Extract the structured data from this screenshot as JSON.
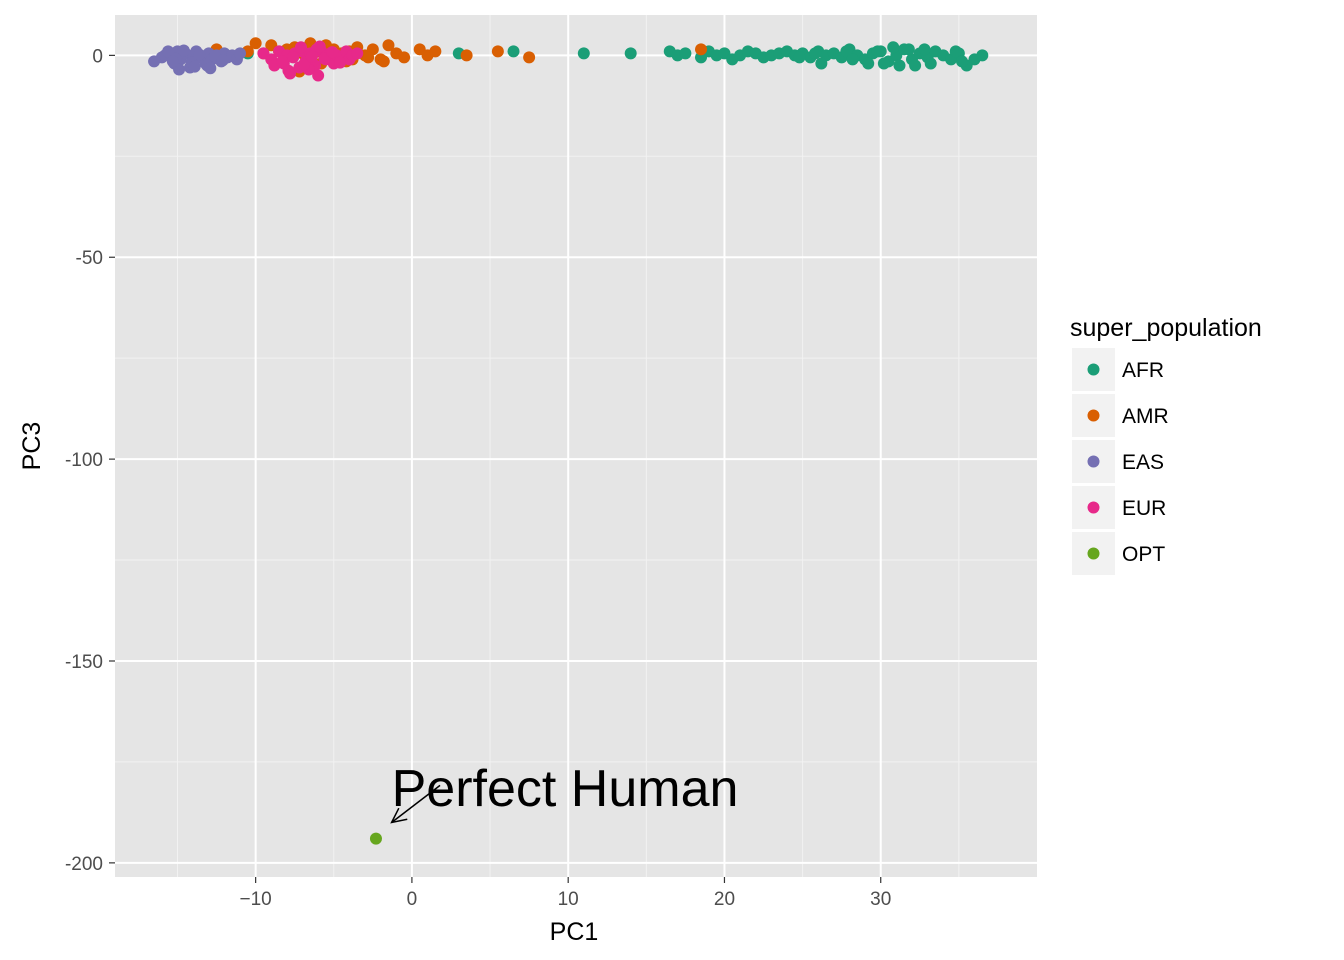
{
  "chart_data": {
    "type": "scatter",
    "xlabel": "PC1",
    "ylabel": "PC3",
    "xlim": [
      -19,
      40
    ],
    "ylim": [
      -203.5,
      10
    ],
    "x_ticks": [
      -10,
      0,
      10,
      20,
      30
    ],
    "y_ticks": [
      0,
      -50,
      -100,
      -150,
      -200
    ],
    "grid": true,
    "legend": {
      "title": "super_population",
      "placement": "right",
      "entries": [
        "AFR",
        "AMR",
        "EAS",
        "EUR",
        "OPT"
      ]
    },
    "colors": {
      "AFR": "#1b9e77",
      "AMR": "#d95f02",
      "EAS": "#7570b3",
      "EUR": "#e7298a",
      "OPT": "#66a61e"
    },
    "series": [
      {
        "name": "AFR",
        "x": [
          -10.5,
          3,
          6.5,
          11,
          14,
          16.5,
          17,
          17.5,
          18.5,
          19,
          19.5,
          20,
          20.5,
          21,
          21.5,
          22,
          22.5,
          23,
          23.5,
          24,
          24.5,
          25,
          25.5,
          26,
          26.5,
          27,
          27.5,
          28,
          28.5,
          29,
          29.5,
          30,
          30.5,
          31,
          31.5,
          32,
          32.5,
          33,
          33.5,
          34,
          34.5,
          35,
          35.5,
          36,
          36.5,
          26.2,
          27.8,
          29.2,
          30.8,
          31.2,
          32.8,
          33.2,
          34.8,
          35.2,
          28.2,
          29.8,
          30.2,
          31.8,
          32.2,
          25.8,
          24.8
        ],
        "y": [
          0.5,
          0.5,
          1,
          0.5,
          0.5,
          1,
          0,
          0.5,
          -0.5,
          1,
          0,
          0.5,
          -1,
          0,
          1,
          0.5,
          -0.5,
          0,
          0.5,
          1,
          0,
          0.5,
          -0.5,
          1,
          0,
          0.5,
          -0.5,
          1.5,
          0,
          -1,
          0.5,
          1,
          -1.5,
          0,
          1.5,
          -1,
          0.5,
          -0.5,
          1,
          0,
          -1,
          0.5,
          -2.5,
          -1,
          0,
          -2,
          1,
          -2,
          2,
          -2.5,
          1.5,
          -2,
          1,
          -1.5,
          -1,
          1,
          -2,
          1.5,
          -2.5,
          0.5,
          -0.5
        ]
      },
      {
        "name": "AMR",
        "x": [
          -12.5,
          -10.5,
          -10,
          -9.5,
          -9,
          -8.5,
          -8,
          -7.5,
          -7,
          -6.5,
          -6,
          -5.5,
          -5,
          -4.5,
          -4,
          -3.5,
          -3,
          -2.5,
          -2,
          -1.5,
          -1,
          -0.5,
          0.5,
          1,
          1.5,
          3.5,
          5.5,
          7.5,
          18.5,
          -7.2,
          -5.8,
          -4.2,
          -2.8,
          -1.8,
          -6.8,
          -3.8
        ],
        "y": [
          1.5,
          1,
          3,
          0.5,
          2.5,
          1,
          1.5,
          2,
          0.5,
          3,
          1,
          2.5,
          1.5,
          0.5,
          1,
          2,
          0,
          1.5,
          -1,
          2.5,
          0.5,
          -0.5,
          1.5,
          0,
          1,
          0,
          1,
          -0.5,
          1.5,
          -4,
          -2,
          -1.5,
          -0.5,
          -1.5,
          -3,
          -1
        ]
      },
      {
        "name": "EAS",
        "x": [
          -16.5,
          -16,
          -15.8,
          -15.5,
          -15.2,
          -15,
          -14.8,
          -14.5,
          -14.2,
          -14,
          -13.8,
          -13.5,
          -13.2,
          -13,
          -12.8,
          -12.5,
          -12.2,
          -12,
          -11.8,
          -11.5,
          -11.2,
          -11,
          -15.6,
          -15.1,
          -14.6,
          -14.1,
          -13.6,
          -13.1,
          -12.6,
          -12.1,
          -14.9,
          -13.9,
          -15.3,
          -12.9
        ],
        "y": [
          -1.5,
          -0.5,
          0,
          0.5,
          -2,
          1,
          -1,
          0.5,
          -3,
          0,
          1,
          -0.5,
          -2,
          0.5,
          -1,
          0,
          -1.5,
          0.5,
          -0.5,
          0,
          -1,
          0.5,
          1,
          -0.8,
          1.2,
          -1.8,
          0.2,
          -2.5,
          -0.2,
          -1.2,
          -3.5,
          -2.8,
          -1.5,
          -3.2
        ]
      },
      {
        "name": "EUR",
        "x": [
          -9.5,
          -9,
          -8.5,
          -8.2,
          -8,
          -7.8,
          -7.5,
          -7.2,
          -7,
          -6.8,
          -6.5,
          -6.2,
          -6,
          -5.8,
          -5.5,
          -5.2,
          -5,
          -4.8,
          -4.5,
          -4.2,
          -4,
          -3.8,
          -3.5,
          -8.8,
          -8.3,
          -7.6,
          -7.1,
          -6.6,
          -6.1,
          -5.6,
          -5.1,
          -4.6,
          -6.9,
          -5.9,
          -7.9,
          -6.4
        ],
        "y": [
          0.5,
          -1,
          1,
          -2,
          0,
          -4.5,
          0.5,
          -3,
          1,
          -1.5,
          0.5,
          -2.5,
          -5,
          1,
          -1,
          0.5,
          -2,
          0,
          -0.5,
          1,
          -1,
          0,
          0.5,
          -2.5,
          -1.5,
          -0.5,
          2,
          -3.5,
          1.5,
          -0.8,
          0.8,
          -1.8,
          -2.2,
          2.2,
          -3.8,
          -0.3
        ]
      },
      {
        "name": "OPT",
        "x": [
          -2.3
        ],
        "y": [
          -194
        ]
      }
    ],
    "annotations": [
      {
        "text": "Perfect Human",
        "x": -1.3,
        "y": -181.5,
        "arrow_from": [
          1.8,
          -180.8
        ],
        "arrow_to": [
          -1.3,
          -190
        ]
      }
    ]
  }
}
